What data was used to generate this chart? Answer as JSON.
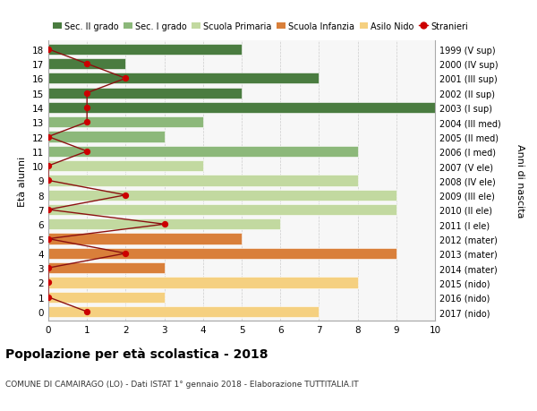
{
  "ages": [
    18,
    17,
    16,
    15,
    14,
    13,
    12,
    11,
    10,
    9,
    8,
    7,
    6,
    5,
    4,
    3,
    2,
    1,
    0
  ],
  "years": [
    "1999 (V sup)",
    "2000 (IV sup)",
    "2001 (III sup)",
    "2002 (II sup)",
    "2003 (I sup)",
    "2004 (III med)",
    "2005 (II med)",
    "2006 (I med)",
    "2007 (V ele)",
    "2008 (IV ele)",
    "2009 (III ele)",
    "2010 (II ele)",
    "2011 (I ele)",
    "2012 (mater)",
    "2013 (mater)",
    "2014 (mater)",
    "2015 (nido)",
    "2016 (nido)",
    "2017 (nido)"
  ],
  "bar_values": [
    5,
    2,
    7,
    5,
    10,
    4,
    3,
    8,
    4,
    8,
    9,
    9,
    6,
    5,
    9,
    3,
    8,
    3,
    7
  ],
  "bar_colors": [
    "#4a7c40",
    "#4a7c40",
    "#4a7c40",
    "#4a7c40",
    "#4a7c40",
    "#8cb87a",
    "#8cb87a",
    "#8cb87a",
    "#c2d9a0",
    "#c2d9a0",
    "#c2d9a0",
    "#c2d9a0",
    "#c2d9a0",
    "#d97f3a",
    "#d97f3a",
    "#d97f3a",
    "#f5d080",
    "#f5d080",
    "#f5d080"
  ],
  "stranieri_values": [
    0,
    1,
    2,
    1,
    1,
    1,
    0,
    1,
    0,
    0,
    2,
    0,
    3,
    0,
    2,
    0,
    0,
    0,
    1
  ],
  "legend_labels": [
    "Sec. II grado",
    "Sec. I grado",
    "Scuola Primaria",
    "Scuola Infanzia",
    "Asilo Nido",
    "Stranieri"
  ],
  "legend_colors": [
    "#4a7c40",
    "#8cb87a",
    "#c2d9a0",
    "#d97f3a",
    "#f5d080",
    "#cc0000"
  ],
  "ylabel_left": "Età alunni",
  "ylabel_right": "Anni di nascita",
  "title": "Popolazione per età scolastica - 2018",
  "subtitle": "COMUNE DI CAMAIRAGO (LO) - Dati ISTAT 1° gennaio 2018 - Elaborazione TUTTITALIA.IT",
  "xlim": [
    0,
    10
  ],
  "bar_height": 0.75,
  "bg_color": "#f7f7f7",
  "grid_color": "#cccccc"
}
